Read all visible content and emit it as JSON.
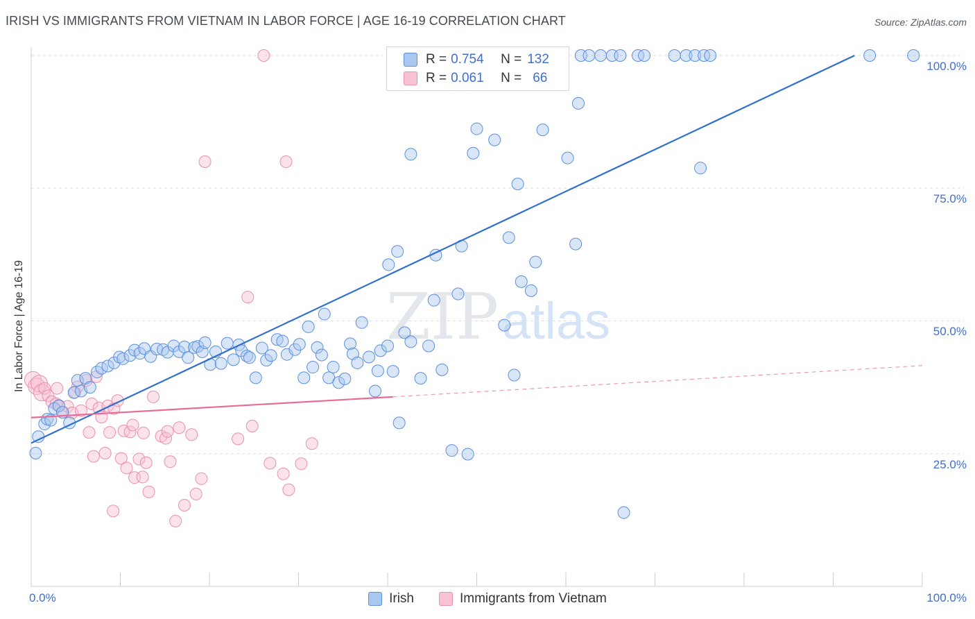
{
  "header": {
    "title": "IRISH VS IMMIGRANTS FROM VIETNAM IN LABOR FORCE | AGE 16-19 CORRELATION CHART",
    "source": "Source: ZipAtlas.com"
  },
  "watermark": {
    "zip": "ZIP",
    "atlas": "atlas"
  },
  "legend": {
    "irish": {
      "r_label": "R = ",
      "r_value": "0.754",
      "n_label": "N = ",
      "n_value": "132"
    },
    "vietnam": {
      "r_label": "R = ",
      "r_value": "0.061",
      "n_label": "N = ",
      "n_value": "66"
    }
  },
  "colors": {
    "irish_fill": "#a9c7f0",
    "irish_stroke": "#5b8fdc",
    "irish_line": "#2f6fd0",
    "vietnam_fill": "#f8c2d2",
    "vietnam_stroke": "#e890ad",
    "vietnam_line": "#e86b97",
    "axis_text": "#3f6fcf",
    "grid": "#dddddd"
  },
  "chart_data": {
    "type": "scatter",
    "title": "IRISH VS IMMIGRANTS FROM VIETNAM IN LABOR FORCE | AGE 16-19 CORRELATION CHART",
    "xlabel": "",
    "ylabel": "In Labor Force | Age 16-19",
    "xlim": [
      0,
      100
    ],
    "ylim": [
      0,
      100
    ],
    "x_tick_labels": [
      "0.0%",
      "100.0%"
    ],
    "y_tick_labels": [
      "25.0%",
      "50.0%",
      "75.0%",
      "100.0%"
    ],
    "y_ticks": [
      25,
      50,
      75,
      100
    ],
    "grid": true,
    "legend_position": "top-center",
    "series": [
      {
        "name": "Irish",
        "trend": {
          "x": [
            0,
            92.4
          ],
          "y": [
            27,
            100
          ]
        },
        "points": [
          [
            0.5,
            25.1
          ],
          [
            0.8,
            28.2
          ],
          [
            1.5,
            30.6
          ],
          [
            1.8,
            31.5
          ],
          [
            2.2,
            31.3
          ],
          [
            2.6,
            33.5
          ],
          [
            3.1,
            34
          ],
          [
            3.5,
            32.8
          ],
          [
            4.3,
            30.8
          ],
          [
            4.8,
            36.5
          ],
          [
            5.2,
            38.8
          ],
          [
            5.6,
            36.8
          ],
          [
            6.1,
            39.2
          ],
          [
            6.6,
            37.5
          ],
          [
            7.4,
            40.4
          ],
          [
            7.9,
            41.1
          ],
          [
            8.6,
            41.5
          ],
          [
            9.3,
            42.1
          ],
          [
            9.9,
            43.2
          ],
          [
            10.3,
            42.9
          ],
          [
            11.1,
            43.5
          ],
          [
            11.6,
            44.5
          ],
          [
            12.2,
            43.9
          ],
          [
            12.7,
            44.8
          ],
          [
            13.4,
            43.3
          ],
          [
            14.1,
            44.7
          ],
          [
            14.8,
            44.6
          ],
          [
            15.3,
            44.1
          ],
          [
            16,
            45.3
          ],
          [
            16.6,
            44.2
          ],
          [
            17.2,
            45.1
          ],
          [
            17.6,
            43.1
          ],
          [
            18.3,
            45
          ],
          [
            18.7,
            45.2
          ],
          [
            19.2,
            44.2
          ],
          [
            19.5,
            45.9
          ],
          [
            20.1,
            41.8
          ],
          [
            20.7,
            44.2
          ],
          [
            21.3,
            42
          ],
          [
            22,
            45.8
          ],
          [
            22.7,
            42.7
          ],
          [
            23.3,
            45.5
          ],
          [
            23.6,
            44.4
          ],
          [
            24.2,
            43.4
          ],
          [
            24.5,
            43.1
          ],
          [
            25.2,
            39.3
          ],
          [
            25.9,
            44.9
          ],
          [
            26.4,
            42.6
          ],
          [
            26.9,
            43.5
          ],
          [
            27.6,
            46.5
          ],
          [
            28.2,
            46.2
          ],
          [
            28.7,
            43.7
          ],
          [
            29.6,
            44.6
          ],
          [
            30.1,
            45.6
          ],
          [
            30.6,
            39.3
          ],
          [
            31.1,
            48.9
          ],
          [
            31.6,
            41.3
          ],
          [
            32.1,
            45
          ],
          [
            32.6,
            43.6
          ],
          [
            32.9,
            51.3
          ],
          [
            33.4,
            39.3
          ],
          [
            33.9,
            41.3
          ],
          [
            34.5,
            38.4
          ],
          [
            35.2,
            39.1
          ],
          [
            35.8,
            45.7
          ],
          [
            36.1,
            43.8
          ],
          [
            36.6,
            42.1
          ],
          [
            37.1,
            49.7
          ],
          [
            37.9,
            43.2
          ],
          [
            38.6,
            36.8
          ],
          [
            38.9,
            40.6
          ],
          [
            39.2,
            44.4
          ],
          [
            40,
            45.3
          ],
          [
            40.6,
            40.5
          ],
          [
            40.1,
            60.6
          ],
          [
            41.1,
            63.1
          ],
          [
            41.3,
            30.8
          ],
          [
            41.9,
            47.8
          ],
          [
            42.6,
            46.1
          ],
          [
            42.6,
            81.4
          ],
          [
            43.7,
            39.2
          ],
          [
            44.6,
            45.3
          ],
          [
            45.2,
            53.9
          ],
          [
            45.4,
            62.4
          ],
          [
            46.1,
            40.8
          ],
          [
            47.2,
            25.6
          ],
          [
            47.9,
            55.1
          ],
          [
            48.3,
            64.1
          ],
          [
            49,
            24.9
          ],
          [
            49.6,
            81.6
          ],
          [
            50,
            86.2
          ],
          [
            50.7,
            100
          ],
          [
            52,
            84.1
          ],
          [
            53.1,
            49.2
          ],
          [
            53.6,
            65.7
          ],
          [
            54.2,
            39.8
          ],
          [
            54.6,
            75.8
          ],
          [
            55,
            57.4
          ],
          [
            56.1,
            55.7
          ],
          [
            56.6,
            61.1
          ],
          [
            57.4,
            86
          ],
          [
            59.1,
            100
          ],
          [
            60.2,
            80.7
          ],
          [
            61.1,
            64.5
          ],
          [
            61.4,
            91
          ],
          [
            61.7,
            100
          ],
          [
            62.6,
            100
          ],
          [
            63.9,
            100
          ],
          [
            65.2,
            100
          ],
          [
            66.1,
            100
          ],
          [
            66.5,
            13.9
          ],
          [
            68.1,
            100
          ],
          [
            68.8,
            100
          ],
          [
            72.2,
            100
          ],
          [
            73.5,
            100
          ],
          [
            74.5,
            100
          ],
          [
            75.1,
            78.8
          ],
          [
            75.5,
            100
          ],
          [
            76.2,
            100
          ],
          [
            94.1,
            100
          ],
          [
            99,
            100
          ]
        ]
      },
      {
        "name": "Immigrants from Vietnam",
        "trend": {
          "x": [
            0,
            40.6
          ],
          "y": [
            31.8,
            35.7
          ]
        },
        "trend_extension": {
          "x": [
            40.6,
            100
          ],
          "y": [
            35.7,
            41.6
          ]
        },
        "points": [
          [
            0.2,
            38.9
          ],
          [
            0.6,
            37.7
          ],
          [
            0.9,
            38.2
          ],
          [
            1.2,
            36.5
          ],
          [
            1.5,
            37.3
          ],
          [
            1.9,
            35.9
          ],
          [
            2.3,
            34.8
          ],
          [
            2.8,
            34.4
          ],
          [
            2.9,
            37.3
          ],
          [
            3.1,
            34.1
          ],
          [
            3.6,
            32.8
          ],
          [
            4.1,
            33.9
          ],
          [
            4.6,
            32.7
          ],
          [
            4.9,
            36.6
          ],
          [
            5.2,
            37.6
          ],
          [
            5.6,
            33.1
          ],
          [
            6.2,
            38.8
          ],
          [
            6.5,
            29
          ],
          [
            6.8,
            34.4
          ],
          [
            7,
            24.5
          ],
          [
            7.3,
            39.5
          ],
          [
            7.6,
            33.6
          ],
          [
            7.9,
            31.9
          ],
          [
            8.3,
            25.1
          ],
          [
            8.6,
            34
          ],
          [
            8.8,
            29
          ],
          [
            9.2,
            14.2
          ],
          [
            9.3,
            33.5
          ],
          [
            9.7,
            35
          ],
          [
            10.1,
            24.1
          ],
          [
            10.4,
            29.3
          ],
          [
            10.7,
            22.3
          ],
          [
            11.1,
            29.1
          ],
          [
            11.4,
            30.4
          ],
          [
            11.6,
            20.5
          ],
          [
            12.1,
            24
          ],
          [
            12.5,
            20.6
          ],
          [
            12.6,
            28.9
          ],
          [
            12.9,
            23.3
          ],
          [
            13.2,
            17.8
          ],
          [
            13.7,
            35.7
          ],
          [
            14.6,
            28.3
          ],
          [
            15.1,
            27.9
          ],
          [
            15.3,
            29.2
          ],
          [
            15.6,
            23.5
          ],
          [
            16.2,
            12.3
          ],
          [
            16.6,
            29.9
          ],
          [
            17.2,
            15.3
          ],
          [
            18,
            28.6
          ],
          [
            18.5,
            17.4
          ],
          [
            19.1,
            20.3
          ],
          [
            19.5,
            80
          ],
          [
            23.2,
            27.8
          ],
          [
            24.3,
            54.5
          ],
          [
            24.8,
            30.2
          ],
          [
            26.1,
            100
          ],
          [
            26.8,
            23.2
          ],
          [
            28.6,
            80
          ],
          [
            28.3,
            21.2
          ],
          [
            28.9,
            18.2
          ],
          [
            30.3,
            23.1
          ],
          [
            31.5,
            26.9
          ]
        ]
      }
    ]
  }
}
